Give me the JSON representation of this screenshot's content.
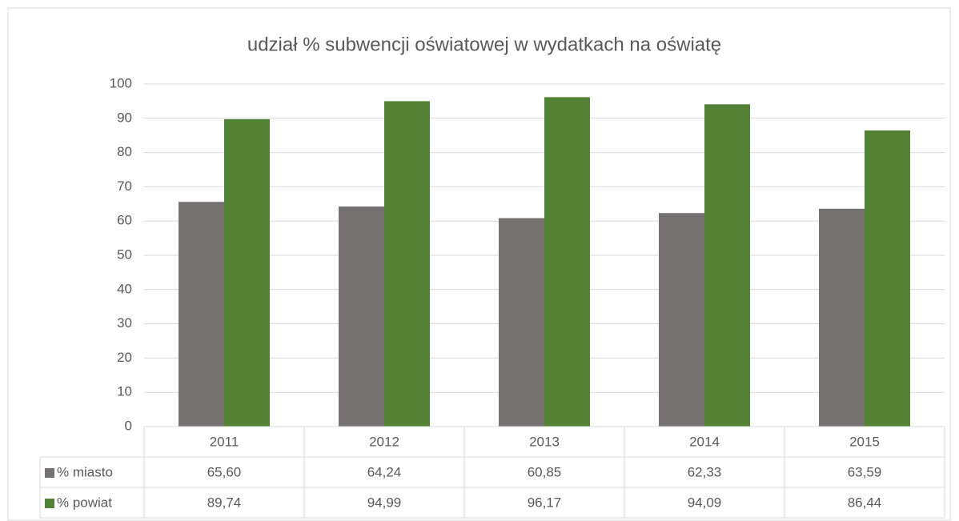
{
  "chart_data": {
    "type": "bar",
    "title": "udział % subwencji oświatowej w wydatkach na oświatę",
    "categories": [
      "2011",
      "2012",
      "2013",
      "2014",
      "2015"
    ],
    "series": [
      {
        "name": "% miasto",
        "color": "#767171",
        "values": [
          65.6,
          64.24,
          60.85,
          62.33,
          63.59
        ],
        "value_labels": [
          "65,60",
          "64,24",
          "60,85",
          "62,33",
          "63,59"
        ]
      },
      {
        "name": "% powiat",
        "color": "#548235",
        "values": [
          89.74,
          94.99,
          96.17,
          94.09,
          86.44
        ],
        "value_labels": [
          "89,74",
          "94,99",
          "96,17",
          "94,09",
          "86,44"
        ]
      }
    ],
    "ylim": [
      0,
      100
    ],
    "yticks": [
      0,
      10,
      20,
      30,
      40,
      50,
      60,
      70,
      80,
      90,
      100
    ],
    "grid": true
  }
}
